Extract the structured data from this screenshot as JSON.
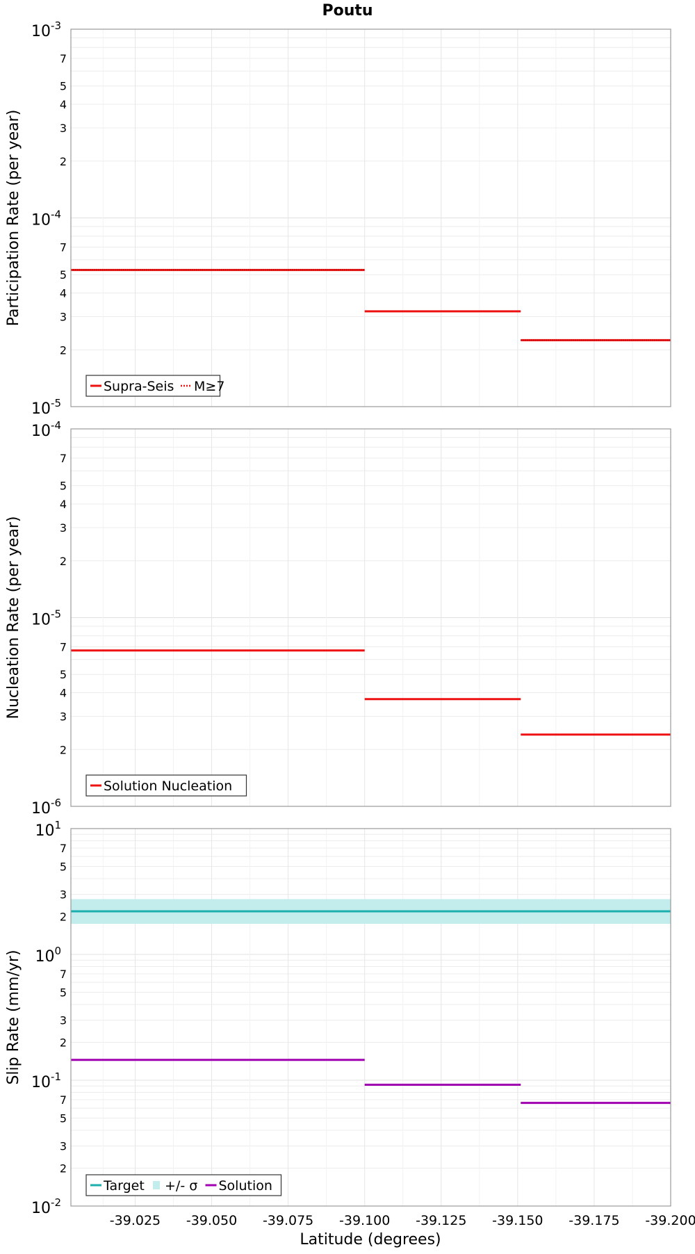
{
  "chart_data": {
    "title": "Poutu",
    "xlabel": "Latitude (degrees)",
    "x_axis": {
      "reversed": true,
      "range": [
        -39.004,
        -39.2
      ],
      "ticks": [
        -39.025,
        -39.05,
        -39.075,
        -39.1,
        -39.125,
        -39.15,
        -39.175,
        -39.2
      ],
      "tick_labels": [
        "-39.025",
        "-39.050",
        "-39.075",
        "-39.100",
        "-39.125",
        "-39.150",
        "-39.175",
        "-39.200"
      ]
    },
    "grid": true,
    "panels": [
      {
        "type": "line",
        "ylabel": "Participation Rate (per year)",
        "yscale": "log",
        "ylim": [
          1e-05,
          0.001
        ],
        "decades": [
          {
            "base": "10",
            "exp": "-5",
            "value": 1e-05
          },
          {
            "base": "10",
            "exp": "-4",
            "value": 0.0001
          },
          {
            "base": "10",
            "exp": "-3",
            "value": 0.001
          }
        ],
        "minor_labels": [
          "2",
          "3",
          "4",
          "5",
          "7"
        ],
        "legend": {
          "placement": "bottom-left",
          "items": [
            {
              "label": "Supra-Seis",
              "style": "solid",
              "color": "#ee1111"
            },
            {
              "label": "M≥7",
              "style": "dotted",
              "color": "#ee1111"
            }
          ]
        },
        "series": [
          {
            "name": "Supra-Seis",
            "style": "solid",
            "color": "#ee1111",
            "segments": [
              {
                "x": [
                  -39.004,
                  -39.1
                ],
                "y": 5.3e-05
              },
              {
                "x": [
                  -39.1,
                  -39.151
                ],
                "y": 3.2e-05
              },
              {
                "x": [
                  -39.151,
                  -39.2
                ],
                "y": 2.25e-05
              }
            ]
          },
          {
            "name": "M≥7",
            "style": "dotted",
            "color": "#ee1111",
            "segments": [
              {
                "x": [
                  -39.004,
                  -39.1
                ],
                "y": 5.3e-05
              },
              {
                "x": [
                  -39.151,
                  -39.2
                ],
                "y": 2.25e-05
              }
            ]
          }
        ]
      },
      {
        "type": "line",
        "ylabel": "Nucleation Rate (per year)",
        "yscale": "log",
        "ylim": [
          1e-06,
          0.0001
        ],
        "decades": [
          {
            "base": "10",
            "exp": "-6",
            "value": 1e-06
          },
          {
            "base": "10",
            "exp": "-5",
            "value": 1e-05
          },
          {
            "base": "10",
            "exp": "-4",
            "value": 0.0001
          }
        ],
        "minor_labels": [
          "2",
          "3",
          "4",
          "5",
          "7"
        ],
        "legend": {
          "placement": "bottom-left",
          "items": [
            {
              "label": "Solution Nucleation",
              "style": "solid",
              "color": "#ee1111"
            }
          ]
        },
        "series": [
          {
            "name": "Solution Nucleation",
            "style": "solid",
            "color": "#ee1111",
            "segments": [
              {
                "x": [
                  -39.004,
                  -39.1
                ],
                "y": 6.7e-06
              },
              {
                "x": [
                  -39.1,
                  -39.151
                ],
                "y": 3.7e-06
              },
              {
                "x": [
                  -39.151,
                  -39.2
                ],
                "y": 2.4e-06
              }
            ]
          }
        ]
      },
      {
        "type": "line",
        "ylabel": "Slip Rate (mm/yr)",
        "yscale": "log",
        "ylim": [
          0.01,
          10
        ],
        "decades": [
          {
            "base": "10",
            "exp": "-2",
            "value": 0.01
          },
          {
            "base": "10",
            "exp": "-1",
            "value": 0.1
          },
          {
            "base": "10",
            "exp": "0",
            "value": 1
          },
          {
            "base": "10",
            "exp": "1",
            "value": 10
          }
        ],
        "minor_labels": [
          "2",
          "3",
          "5",
          "7"
        ],
        "legend": {
          "placement": "bottom-left",
          "items": [
            {
              "label": "Target",
              "style": "solid",
              "color": "#1aaeae"
            },
            {
              "label": "+/- σ",
              "style": "band",
              "color": "#c3ecec"
            },
            {
              "label": "Solution",
              "style": "solid",
              "color": "#a000b0"
            }
          ]
        },
        "bands": [
          {
            "name": "+/- σ",
            "color": "#c3ecec",
            "x": [
              -39.004,
              -39.2
            ],
            "y_low": 1.75,
            "y_high": 2.75
          }
        ],
        "series": [
          {
            "name": "Target",
            "style": "solid",
            "color": "#1aaeae",
            "segments": [
              {
                "x": [
                  -39.004,
                  -39.2
                ],
                "y": 2.2
              }
            ]
          },
          {
            "name": "Solution",
            "style": "solid",
            "color": "#a000b0",
            "segments": [
              {
                "x": [
                  -39.004,
                  -39.1
                ],
                "y": 0.145
              },
              {
                "x": [
                  -39.1,
                  -39.151
                ],
                "y": 0.092
              },
              {
                "x": [
                  -39.151,
                  -39.2
                ],
                "y": 0.066
              }
            ]
          }
        ]
      }
    ]
  }
}
